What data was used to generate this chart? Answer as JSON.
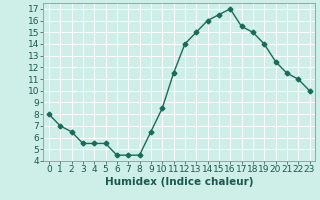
{
  "x": [
    0,
    1,
    2,
    3,
    4,
    5,
    6,
    7,
    8,
    9,
    10,
    11,
    12,
    13,
    14,
    15,
    16,
    17,
    18,
    19,
    20,
    21,
    22,
    23
  ],
  "y": [
    8.0,
    7.0,
    6.5,
    5.5,
    5.5,
    5.5,
    4.5,
    4.5,
    4.5,
    6.5,
    8.5,
    11.5,
    14.0,
    15.0,
    16.0,
    16.5,
    17.0,
    15.5,
    15.0,
    14.0,
    12.5,
    11.5,
    11.0,
    10.0
  ],
  "xlim": [
    -0.5,
    23.5
  ],
  "ylim": [
    4,
    17.5
  ],
  "yticks": [
    4,
    5,
    6,
    7,
    8,
    9,
    10,
    11,
    12,
    13,
    14,
    15,
    16,
    17
  ],
  "xticks": [
    0,
    1,
    2,
    3,
    4,
    5,
    6,
    7,
    8,
    9,
    10,
    11,
    12,
    13,
    14,
    15,
    16,
    17,
    18,
    19,
    20,
    21,
    22,
    23
  ],
  "xlabel": "Humidex (Indice chaleur)",
  "line_color": "#1a6b5a",
  "marker": "D",
  "marker_size": 2.5,
  "line_width": 1.0,
  "bg_color": "#ceeee8",
  "grid_color": "#ffffff",
  "tick_label_fontsize": 6.5,
  "xlabel_fontsize": 7.5
}
